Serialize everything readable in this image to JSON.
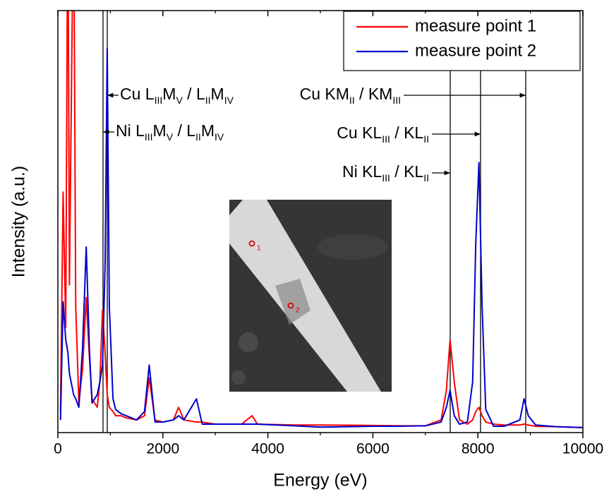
{
  "chart_data": {
    "type": "line",
    "x_label": "Energy (eV)",
    "y_label": "Intensity (a.u.)",
    "xlim": [
      0,
      10000
    ],
    "ylim": [
      0,
      100
    ],
    "xticks": [
      0,
      2000,
      4000,
      6000,
      8000,
      10000
    ],
    "xminorticks": [
      1000,
      3000,
      5000,
      7000,
      9000
    ],
    "legend": "upper right",
    "x": [
      50,
      100,
      150,
      190,
      220,
      300,
      340,
      400,
      470,
      540,
      600,
      650,
      750,
      800,
      850,
      900,
      940,
      980,
      1050,
      1100,
      1200,
      1300,
      1500,
      1650,
      1740,
      1850,
      2000,
      2200,
      2300,
      2400,
      2640,
      2750,
      3000,
      3500,
      3700,
      3800,
      4500,
      5000,
      6000,
      6500,
      7000,
      7300,
      7400,
      7470,
      7550,
      7650,
      7800,
      7900,
      7960,
      8020,
      8080,
      8150,
      8300,
      8500,
      8800,
      8880,
      8960,
      9100,
      9500,
      10000
    ],
    "series": [
      {
        "name": "measure point 1",
        "color": "#ff0000",
        "values": [
          5,
          57,
          25,
          130,
          35,
          130,
          30,
          7,
          15,
          32,
          18,
          8,
          6,
          12,
          29,
          19,
          9,
          6,
          5,
          4,
          4,
          3.5,
          3,
          4,
          13,
          3,
          2.5,
          3,
          6,
          3,
          2.5,
          2.5,
          2,
          2,
          4,
          2,
          1.8,
          1.8,
          1.7,
          1.6,
          1.6,
          3,
          10,
          22,
          12,
          3,
          2,
          3,
          5,
          6,
          4,
          2.5,
          2,
          1.8,
          1.8,
          2,
          1.8,
          1.5,
          1.4,
          1.2
        ]
      },
      {
        "name": "measure point 2",
        "color": "#0000cc",
        "values": [
          3,
          31,
          22,
          19,
          14,
          9,
          8,
          6,
          20,
          44,
          20,
          7,
          9,
          12,
          16,
          40,
          91,
          30,
          8,
          5.5,
          4.5,
          4,
          3,
          5,
          16,
          2.5,
          2.5,
          3,
          4,
          3,
          8,
          2,
          2,
          2,
          2,
          2,
          1.6,
          1.3,
          1.5,
          1.5,
          1.6,
          2.5,
          6,
          10,
          4,
          2,
          2.5,
          12,
          45,
          64,
          30,
          5.5,
          1.5,
          1.5,
          3,
          8,
          4,
          1.8,
          1.4,
          1.2
        ]
      }
    ],
    "annotations": [
      {
        "x": 941,
        "label": [
          {
            "text": "Cu L"
          },
          {
            "sub": "III"
          },
          {
            "text": "M"
          },
          {
            "sub": "V"
          },
          {
            "text": " / L"
          },
          {
            "sub": "II"
          },
          {
            "text": "M"
          },
          {
            "sub": "IV"
          }
        ]
      },
      {
        "x": 860,
        "label": [
          {
            "text": "Ni L"
          },
          {
            "sub": "III"
          },
          {
            "text": "M"
          },
          {
            "sub": "V"
          },
          {
            "text": " / L"
          },
          {
            "sub": "II"
          },
          {
            "text": "M"
          },
          {
            "sub": "IV"
          }
        ]
      },
      {
        "x": 8911,
        "label": [
          {
            "text": "Cu KM"
          },
          {
            "sub": "II"
          },
          {
            "text": " / KM"
          },
          {
            "sub": "III"
          }
        ]
      },
      {
        "x": 8051,
        "label": [
          {
            "text": "Cu KL"
          },
          {
            "sub": "III"
          },
          {
            "text": " / KL"
          },
          {
            "sub": "II"
          }
        ]
      },
      {
        "x": 7473,
        "label": [
          {
            "text": "Ni KL"
          },
          {
            "sub": "III"
          },
          {
            "text": " / KL"
          },
          {
            "sub": "II"
          }
        ]
      }
    ],
    "inset_labels": [
      "1",
      "2"
    ]
  }
}
